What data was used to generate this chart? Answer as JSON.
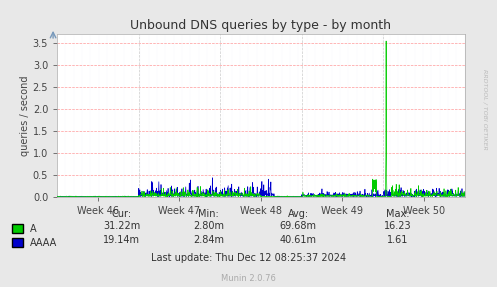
{
  "title": "Unbound DNS queries by type - by month",
  "ylabel": "queries / second",
  "yticks": [
    0.0,
    0.5,
    1.0,
    1.5,
    2.0,
    2.5,
    3.0,
    3.5
  ],
  "ylim": [
    0,
    3.7
  ],
  "week_labels": [
    "Week 46",
    "Week 47",
    "Week 48",
    "Week 49",
    "Week 50"
  ],
  "background_color": "#e8e8e8",
  "plot_bg_color": "#ffffff",
  "grid_color_h": "#ff9999",
  "grid_color_v": "#cccccc",
  "color_A": "#00cc00",
  "color_AAAA": "#0000cc",
  "stats": {
    "A": {
      "cur": "31.22m",
      "min": "2.80m",
      "avg": "69.68m",
      "max": "16.23"
    },
    "AAAA": {
      "cur": "19.14m",
      "min": "2.84m",
      "avg": "40.61m",
      "max": "1.61"
    }
  },
  "last_update": "Last update: Thu Dec 12 08:25:37 2024",
  "munin_version": "Munin 2.0.76",
  "rrdtool_label": "RRDTOOL / TOBI OETIKER",
  "n_points": 1500
}
